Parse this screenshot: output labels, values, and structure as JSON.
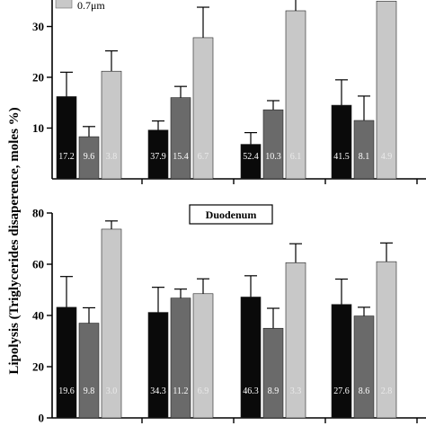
{
  "ylabel": "Lipolysis (Triglycerides disaperence, moles %)",
  "legend": {
    "last_item": "0.7μm"
  },
  "colors": {
    "series_black": "#0a0a0a",
    "series_dark": "#6a6a6a",
    "series_light": "#c8c8c8"
  },
  "chart_data": [
    {
      "type": "bar",
      "panel": "top",
      "title": "",
      "ylim": [
        0,
        35
      ],
      "yticks": [
        10,
        20,
        30
      ],
      "groups": 4,
      "series": [
        {
          "name": "",
          "color": "#0a0a0a",
          "values": [
            16.2,
            9.6,
            6.8,
            14.5
          ],
          "errors": [
            4.8,
            1.8,
            2.3,
            5.0
          ],
          "bar_labels": [
            "17.2",
            "37.9",
            "52.4",
            "41.5"
          ],
          "label_color": "#ffffff"
        },
        {
          "name": "",
          "color": "#6a6a6a",
          "values": [
            8.3,
            16.0,
            13.6,
            11.5
          ],
          "errors": [
            2.0,
            2.2,
            1.8,
            4.8
          ],
          "bar_labels": [
            "9.6",
            "15.4",
            "10.3",
            "8.1"
          ],
          "label_color": "#ffffff"
        },
        {
          "name": "0.7μm",
          "color": "#c8c8c8",
          "values": [
            21.2,
            27.8,
            33.1,
            35.0
          ],
          "errors": [
            4.0,
            6.0,
            3.5,
            0
          ],
          "bar_labels": [
            "3.8",
            "6.7",
            "6.1",
            "4.9"
          ],
          "label_color": "#eaeaea"
        }
      ]
    },
    {
      "type": "bar",
      "panel": "bottom",
      "title": "Duodenum",
      "ylim": [
        0,
        80
      ],
      "yticks": [
        0,
        20,
        40,
        60,
        80
      ],
      "groups": 4,
      "series": [
        {
          "name": "",
          "color": "#0a0a0a",
          "values": [
            43.2,
            41.2,
            47.2,
            44.3
          ],
          "errors": [
            12.0,
            9.8,
            8.3,
            9.9
          ],
          "bar_labels": [
            "19.6",
            "34.3",
            "46.3",
            "27.6"
          ],
          "label_color": "#ffffff"
        },
        {
          "name": "",
          "color": "#6a6a6a",
          "values": [
            37.0,
            46.8,
            35.0,
            39.8
          ],
          "errors": [
            6.0,
            3.5,
            7.8,
            3.4
          ],
          "bar_labels": [
            "9.8",
            "11.2",
            "8.9",
            "8.6"
          ],
          "label_color": "#ffffff"
        },
        {
          "name": "",
          "color": "#c8c8c8",
          "values": [
            73.7,
            48.5,
            60.6,
            61.0
          ],
          "errors": [
            3.2,
            5.8,
            7.4,
            7.3
          ],
          "bar_labels": [
            "3.0",
            "6.9",
            "3.3",
            "2.8"
          ],
          "label_color": "#eaeaea"
        }
      ]
    }
  ]
}
